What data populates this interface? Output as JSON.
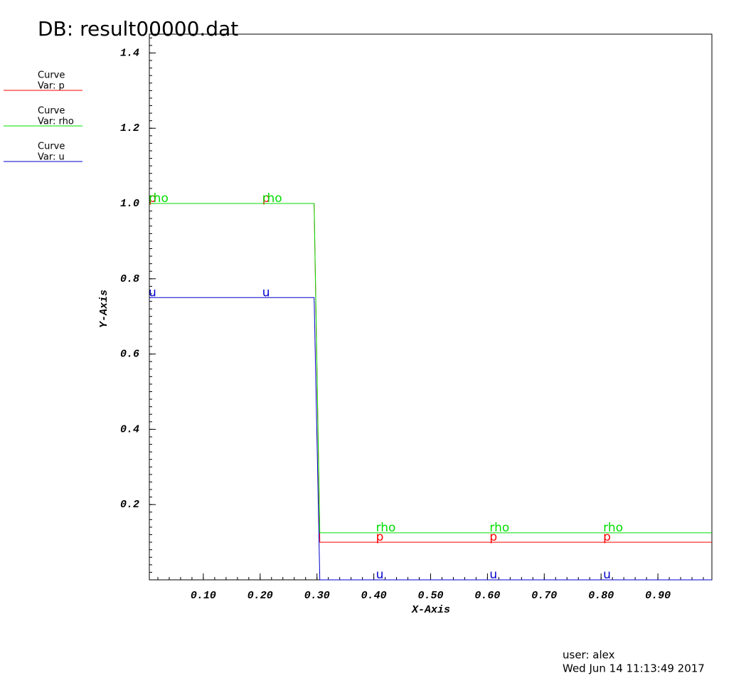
{
  "chart_data": {
    "type": "line",
    "title": "DB: result00000.dat",
    "x_label": "X-Axis",
    "y_label": "Y-Axis",
    "legend_heading": "Curve",
    "x": [
      0.005,
      0.295,
      0.305,
      0.995
    ],
    "series": [
      {
        "name": "Var: p",
        "curve_label": "p",
        "color": "#ff0000",
        "values": [
          1.0,
          1.0,
          0.1,
          0.1
        ]
      },
      {
        "name": "Var: rho",
        "curve_label": "rho",
        "color": "#00dd00",
        "values": [
          1.0,
          1.0,
          0.125,
          0.125
        ]
      },
      {
        "name": "Var: u",
        "curve_label": "u",
        "color": "#0000cc",
        "values": [
          0.75,
          0.75,
          0,
          0
        ]
      }
    ],
    "label_x": [
      0.01,
      0.21,
      0.41,
      0.61,
      0.81
    ],
    "xlim": [
      0.005,
      0.995
    ],
    "ylim": [
      0,
      1.45
    ],
    "xticks": [
      {
        "value": 0.1,
        "label": "0.10"
      },
      {
        "value": 0.2,
        "label": "0.20"
      },
      {
        "value": 0.3,
        "label": "0.30"
      },
      {
        "value": 0.4,
        "label": "0.40"
      },
      {
        "value": 0.5,
        "label": "0.50"
      },
      {
        "value": 0.6,
        "label": "0.60"
      },
      {
        "value": 0.7,
        "label": "0.70"
      },
      {
        "value": 0.8,
        "label": "0.80"
      },
      {
        "value": 0.9,
        "label": "0.90"
      }
    ],
    "yticks": [
      0.2,
      0.4,
      0.6,
      0.8,
      {
        "value": 1,
        "label": "1.0"
      },
      1.2,
      1.4
    ],
    "footer": {
      "user": "user: alex",
      "date": "Wed Jun 14 11:13:49 2017"
    }
  }
}
